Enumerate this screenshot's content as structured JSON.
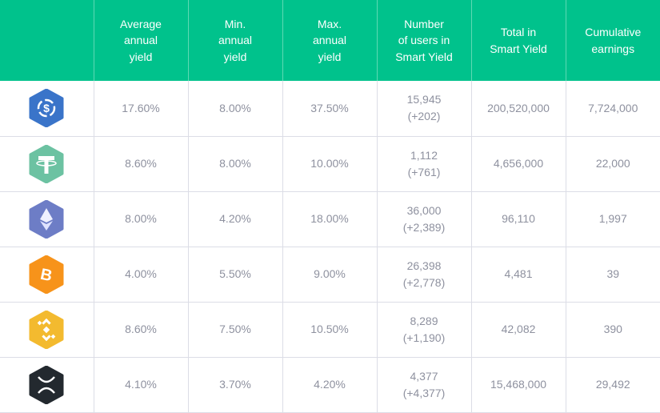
{
  "headers": [
    "",
    "Average annual yield",
    "Min. annual yield",
    "Max. annual yield",
    "Number of users in Smart Yield",
    "Total in Smart Yield",
    "Cumulative earnings"
  ],
  "header_lines": [
    [],
    [
      "Average",
      "annual",
      "yield"
    ],
    [
      "Min.",
      "annual",
      "yield"
    ],
    [
      "Max.",
      "annual",
      "yield"
    ],
    [
      "Number",
      "of users in",
      "Smart Yield"
    ],
    [
      "Total in",
      "Smart Yield"
    ],
    [
      "Cumulative",
      "earnings"
    ]
  ],
  "rows": [
    {
      "icon": "usdc-icon",
      "color": "#3a74c9",
      "avg": "17.60%",
      "min": "8.00%",
      "max": "37.50%",
      "users": "15,945",
      "users_delta": "(+202)",
      "total": "200,520,000",
      "earnings": "7,724,000"
    },
    {
      "icon": "tether-icon",
      "color": "#6cc2a2",
      "avg": "8.60%",
      "min": "8.00%",
      "max": "10.00%",
      "users": "1,112",
      "users_delta": "(+761)",
      "total": "4,656,000",
      "earnings": "22,000"
    },
    {
      "icon": "ethereum-icon",
      "color": "#6d7dc6",
      "avg": "8.00%",
      "min": "4.20%",
      "max": "18.00%",
      "users": "36,000",
      "users_delta": "(+2,389)",
      "total": "96,110",
      "earnings": "1,997"
    },
    {
      "icon": "bitcoin-icon",
      "color": "#f7931a",
      "avg": "4.00%",
      "min": "5.50%",
      "max": "9.00%",
      "users": "26,398",
      "users_delta": "(+2,778)",
      "total": "4,481",
      "earnings": "39"
    },
    {
      "icon": "binance-icon",
      "color": "#f3ba2f",
      "avg": "8.60%",
      "min": "7.50%",
      "max": "10.50%",
      "users": "8,289",
      "users_delta": "(+1,190)",
      "total": "42,082",
      "earnings": "390"
    },
    {
      "icon": "xrp-icon",
      "color": "#23292f",
      "avg": "4.10%",
      "min": "3.70%",
      "max": "4.20%",
      "users": "4,377",
      "users_delta": "(+4,377)",
      "total": "15,468,000",
      "earnings": "29,492"
    }
  ],
  "colors": {
    "header_bg": "#00c28c",
    "cell_text": "#8e919f",
    "grid": "#dcdde6"
  }
}
